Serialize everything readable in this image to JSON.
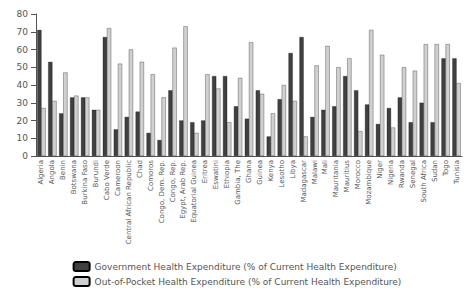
{
  "chart_data": {
    "type": "bar",
    "categories": [
      "Algeria",
      "Angola",
      "Benin",
      "Botswana",
      "Burkina Faso",
      "Burundi",
      "Cabo Verde",
      "Cameroon",
      "Central African Republic",
      "Chad",
      "Comoros",
      "Congo, Dem. Rep.",
      "Congo, Rep.",
      "Egypt, Arab Rep.",
      "Equatorial Guinea",
      "Eritrea",
      "Eswatini",
      "Ethiopia",
      "Gambia, The",
      "Ghana",
      "Guinea",
      "Kenya",
      "Lesotho",
      "Libya",
      "Madagascar",
      "Malawi",
      "Mali",
      "Mauritania",
      "Mauritius",
      "Morocco",
      "Mozambique",
      "Niger",
      "Nigeria",
      "Rwanda",
      "Senegal",
      "South Africa",
      "Sudan",
      "Togo",
      "Tunisia"
    ],
    "series": [
      {
        "name": "Government Health Expenditure (% of Current Health Expenditure)",
        "color": "#404040",
        "values": [
          71,
          53,
          24,
          33,
          33,
          26,
          67,
          15,
          22,
          25,
          13,
          9,
          37,
          20,
          19,
          20,
          45,
          45,
          28,
          21,
          37,
          11,
          32,
          58,
          67,
          22,
          26,
          28,
          45,
          37,
          29,
          18,
          27,
          33,
          19,
          30,
          19,
          55,
          55
        ]
      },
      {
        "name": "Out-of-Pocket Health Expenditure (% of Current Health Expenditure)",
        "color": "#d0d0d0",
        "values": [
          27,
          31,
          47,
          34,
          33,
          26,
          72,
          52,
          60,
          53,
          46,
          33,
          61,
          73,
          13,
          46,
          38,
          19,
          44,
          64,
          35,
          24,
          40,
          31,
          11,
          51,
          62,
          50,
          55,
          14,
          71,
          57,
          16,
          50,
          48,
          63,
          63,
          63,
          41
        ]
      }
    ],
    "ylim": [
      0,
      80
    ],
    "yticks": [
      0,
      10,
      20,
      30,
      40,
      50,
      60,
      70,
      80
    ],
    "grid": false,
    "legend": "bottom"
  }
}
